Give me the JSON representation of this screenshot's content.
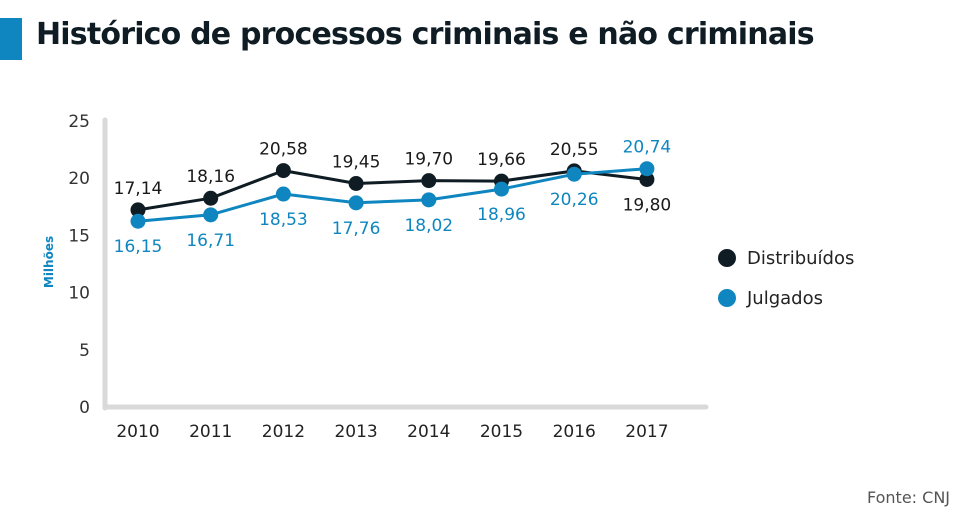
{
  "header": {
    "title": "Histórico de processos criminais e não criminais"
  },
  "source": "Fonte: CNJ",
  "colors": {
    "distribuidos": "#0f1c24",
    "julgados": "#0f86c0",
    "axis": "#d9d9d9",
    "text": "#222222",
    "accent": "#0f86c0"
  },
  "chart_data": {
    "type": "line",
    "title": "Histórico de processos criminais e não criminais",
    "xlabel": "",
    "ylabel": "Milhões",
    "ylim": [
      0,
      25
    ],
    "yticks": [
      "0",
      "5",
      "10",
      "15",
      "20",
      "25"
    ],
    "ytick_values": [
      0,
      5,
      10,
      15,
      20,
      25
    ],
    "grid": false,
    "legend_position": "right",
    "categories": [
      "2010",
      "2011",
      "2012",
      "2013",
      "2014",
      "2015",
      "2016",
      "2017"
    ],
    "series": [
      {
        "name": "Distribuídos",
        "values": [
          17.14,
          18.16,
          20.58,
          19.45,
          19.7,
          19.66,
          20.55,
          19.8
        ],
        "labels": [
          "17,14",
          "18,16",
          "20,58",
          "19,45",
          "19,70",
          "19,66",
          "20,55",
          "19,80"
        ]
      },
      {
        "name": "Julgados",
        "values": [
          16.15,
          16.71,
          18.53,
          17.76,
          18.02,
          18.96,
          20.26,
          20.74
        ],
        "labels": [
          "16,15",
          "16,71",
          "18,53",
          "17,76",
          "18,02",
          "18,96",
          "20,26",
          "20,74"
        ]
      }
    ]
  }
}
